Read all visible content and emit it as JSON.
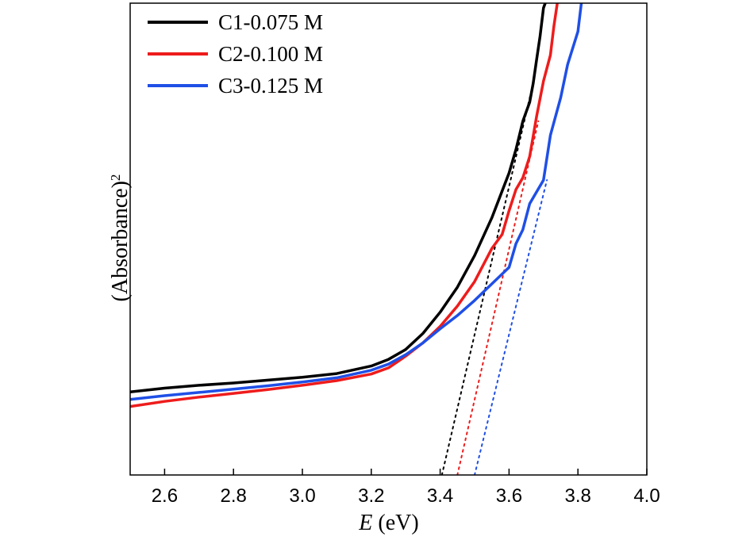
{
  "chart_data": {
    "type": "line",
    "xlabel_italic": "E",
    "xlabel_rest": " (eV)",
    "ylabel_main": "(Absorbance)",
    "ylabel_sup": "2",
    "xlim": [
      2.5,
      4.0
    ],
    "ylim": [
      0,
      1
    ],
    "y_ticks_shown": false,
    "x_ticks": [
      {
        "value": 2.6,
        "label": "2.6"
      },
      {
        "value": 2.8,
        "label": "2.8"
      },
      {
        "value": 3.0,
        "label": "3.0"
      },
      {
        "value": 3.2,
        "label": "3.2"
      },
      {
        "value": 3.4,
        "label": "3.4"
      },
      {
        "value": 3.6,
        "label": "3.6"
      },
      {
        "value": 3.8,
        "label": "3.8"
      },
      {
        "value": 4.0,
        "label": "4.0"
      }
    ],
    "legend_position": "top-left",
    "series": [
      {
        "name": "C1-0.075 M",
        "color": "#000000",
        "points": [
          [
            2.5,
            0.176
          ],
          [
            2.6,
            0.184
          ],
          [
            2.7,
            0.19
          ],
          [
            2.8,
            0.195
          ],
          [
            2.9,
            0.201
          ],
          [
            3.0,
            0.207
          ],
          [
            3.1,
            0.215
          ],
          [
            3.2,
            0.231
          ],
          [
            3.25,
            0.245
          ],
          [
            3.3,
            0.266
          ],
          [
            3.35,
            0.3
          ],
          [
            3.4,
            0.345
          ],
          [
            3.45,
            0.398
          ],
          [
            3.5,
            0.465
          ],
          [
            3.55,
            0.545
          ],
          [
            3.6,
            0.64
          ],
          [
            3.62,
            0.69
          ],
          [
            3.64,
            0.75
          ],
          [
            3.65,
            0.77
          ],
          [
            3.66,
            0.79
          ],
          [
            3.67,
            0.83
          ],
          [
            3.68,
            0.88
          ],
          [
            3.69,
            0.93
          ],
          [
            3.7,
            0.99
          ],
          [
            3.705,
            1.0
          ]
        ],
        "tangent": [
          [
            3.405,
            0.0
          ],
          [
            3.665,
            0.815
          ]
        ]
      },
      {
        "name": "C2-0.100 M",
        "color": "#ee1c1c",
        "points": [
          [
            2.5,
            0.145
          ],
          [
            2.6,
            0.156
          ],
          [
            2.7,
            0.165
          ],
          [
            2.8,
            0.173
          ],
          [
            2.9,
            0.181
          ],
          [
            3.0,
            0.19
          ],
          [
            3.1,
            0.2
          ],
          [
            3.2,
            0.214
          ],
          [
            3.25,
            0.227
          ],
          [
            3.3,
            0.252
          ],
          [
            3.35,
            0.28
          ],
          [
            3.4,
            0.315
          ],
          [
            3.45,
            0.358
          ],
          [
            3.5,
            0.41
          ],
          [
            3.55,
            0.48
          ],
          [
            3.58,
            0.51
          ],
          [
            3.6,
            0.56
          ],
          [
            3.62,
            0.605
          ],
          [
            3.64,
            0.63
          ],
          [
            3.66,
            0.675
          ],
          [
            3.68,
            0.76
          ],
          [
            3.7,
            0.835
          ],
          [
            3.72,
            0.89
          ],
          [
            3.73,
            0.95
          ],
          [
            3.74,
            1.0
          ]
        ],
        "tangent": [
          [
            3.45,
            0.0
          ],
          [
            3.685,
            0.75
          ]
        ]
      },
      {
        "name": "C3-0.125 M",
        "color": "#1f4fe6",
        "points": [
          [
            2.5,
            0.16
          ],
          [
            2.6,
            0.168
          ],
          [
            2.7,
            0.175
          ],
          [
            2.8,
            0.182
          ],
          [
            2.9,
            0.189
          ],
          [
            3.0,
            0.197
          ],
          [
            3.1,
            0.206
          ],
          [
            3.2,
            0.222
          ],
          [
            3.25,
            0.235
          ],
          [
            3.3,
            0.255
          ],
          [
            3.35,
            0.28
          ],
          [
            3.4,
            0.31
          ],
          [
            3.45,
            0.338
          ],
          [
            3.5,
            0.37
          ],
          [
            3.55,
            0.405
          ],
          [
            3.6,
            0.44
          ],
          [
            3.62,
            0.49
          ],
          [
            3.64,
            0.52
          ],
          [
            3.66,
            0.575
          ],
          [
            3.68,
            0.6
          ],
          [
            3.7,
            0.625
          ],
          [
            3.72,
            0.72
          ],
          [
            3.75,
            0.8
          ],
          [
            3.77,
            0.87
          ],
          [
            3.8,
            0.94
          ],
          [
            3.81,
            1.0
          ]
        ],
        "tangent": [
          [
            3.5,
            0.0
          ],
          [
            3.71,
            0.625
          ]
        ]
      }
    ]
  }
}
